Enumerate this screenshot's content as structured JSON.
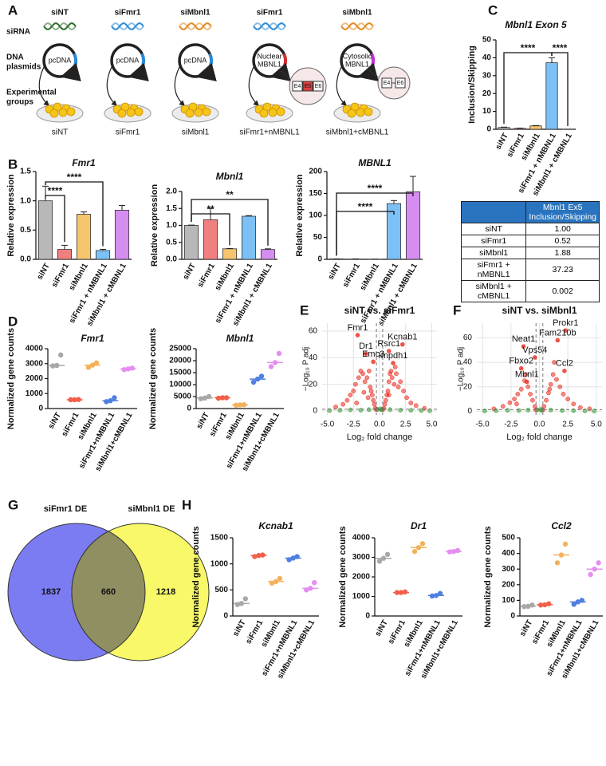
{
  "panel_labels": [
    "A",
    "B",
    "C",
    "D",
    "E",
    "F",
    "G",
    "H"
  ],
  "diagram": {
    "row_labels": [
      [
        "siRNA"
      ],
      [
        "DNA",
        "plasmids"
      ],
      [
        "Experimental",
        "groups"
      ]
    ],
    "sirna": [
      {
        "text": "siNT",
        "color": "#2e6b2e"
      },
      {
        "text": "siFmr1",
        "color": "#2a8ad6"
      },
      {
        "text": "siMbnl1",
        "color": "#e08a20"
      },
      {
        "text": "siFmr1",
        "color": "#2a8ad6"
      },
      {
        "text": "siMbnl1",
        "color": "#e08a20"
      }
    ],
    "plasmids": [
      [
        "pcDNA"
      ],
      [
        "pcDNA"
      ],
      [
        "pcDNA"
      ],
      [
        "Nuclear",
        "MBNL1"
      ],
      [
        "Cytosolic",
        "MBNL1"
      ]
    ],
    "exons": [
      [
        "E4",
        "E5",
        "E6"
      ],
      [
        "E4",
        "E6"
      ]
    ],
    "groups": [
      "siNT",
      "siFmr1",
      "siMbnl1",
      "siFmr1+nMBNL1",
      "siMbnl1+cMBNL1"
    ]
  },
  "table": {
    "header": "Mbnl1 Ex5 Inclusion/Skipping",
    "rows": [
      [
        "siNT",
        "1.00"
      ],
      [
        "siFmr1",
        "0.52"
      ],
      [
        "siMbnl1",
        "1.88"
      ],
      [
        "siFmr1 + nMBNL1",
        "37.23"
      ],
      [
        "siMbnl1 + cMBNL1",
        "0.002"
      ]
    ]
  },
  "chart_data": [
    {
      "type": "bar",
      "title": "Mbnl1 Exon 5",
      "ylabel": "Inclusion/Skipping",
      "categories": [
        "siNT",
        "siFmr1",
        "siMbnl1",
        "siFmr1 + nMBNL1",
        "siMbnl1 + cMBNL1"
      ],
      "values": [
        1.0,
        0.52,
        1.88,
        37.23,
        0.002
      ],
      "errors": [
        0.2,
        0.1,
        0.2,
        2.8,
        0
      ],
      "colors": [
        "#b8b8b8",
        "#f08080",
        "#f7c56e",
        "#7cc0f5",
        "#d58df0"
      ],
      "ylim": [
        0,
        50
      ],
      "yticks": [
        0,
        10,
        20,
        30,
        40,
        50
      ],
      "brackets": [
        {
          "between": [
            0,
            3
          ],
          "label": "****"
        },
        {
          "between": [
            3,
            4
          ],
          "label": "****"
        }
      ]
    },
    {
      "type": "bar",
      "title": "Fmr1",
      "ylabel": "Relative expression",
      "categories": [
        "siNT",
        "siFmr1",
        "siMbnl1",
        "siFmr1 + nMBNL1",
        "siMbnl1 + cMBNL1"
      ],
      "values": [
        1.0,
        0.17,
        0.77,
        0.15,
        0.84
      ],
      "errors": [
        0.25,
        0.07,
        0.04,
        0.02,
        0.08
      ],
      "colors": [
        "#b8b8b8",
        "#f08080",
        "#f7c56e",
        "#7cc0f5",
        "#d58df0"
      ],
      "ylim": [
        0,
        1.5
      ],
      "yticks": [
        {
          "value": 0,
          "label": "0.0"
        },
        0.5,
        {
          "value": 1,
          "label": "1.0"
        },
        1.5
      ],
      "brackets": [
        {
          "between": [
            0,
            1
          ],
          "label": "****"
        },
        {
          "between": [
            0,
            3
          ],
          "label": "****"
        }
      ]
    },
    {
      "type": "bar",
      "title": "Mbnl1",
      "ylabel": "Relative expression",
      "categories": [
        "siNT",
        "siFmr1",
        "siMbnl1",
        "siFmr1 + nMBNL1",
        "siMbnl1 + cMBNL1"
      ],
      "values": [
        1.0,
        1.17,
        0.31,
        1.27,
        0.29
      ],
      "errors": [
        0.01,
        0.33,
        0.01,
        0.02,
        0.02
      ],
      "colors": [
        "#b8b8b8",
        "#f08080",
        "#f7c56e",
        "#7cc0f5",
        "#d58df0"
      ],
      "ylim": [
        0,
        2
      ],
      "yticks": [
        {
          "value": 0,
          "label": "0.0"
        },
        0.5,
        {
          "value": 1,
          "label": "1.0"
        },
        1.5,
        {
          "value": 2,
          "label": "2.0"
        }
      ],
      "brackets": [
        {
          "between": [
            0,
            2
          ],
          "label": "**"
        },
        {
          "between": [
            0,
            4
          ],
          "label": "**"
        }
      ]
    },
    {
      "type": "bar",
      "title": "MBNL1",
      "ylabel": "Relative expression",
      "categories": [
        "siNT",
        "siFmr1",
        "siMbnl1",
        "siFmr1 + nMBNL1",
        "siMbnl1 + cMBNL1"
      ],
      "values": [
        1,
        0.5,
        0.3,
        127,
        154
      ],
      "errors": [
        0.05,
        0.5,
        0.05,
        7,
        35
      ],
      "colors": [
        "#b8b8b8",
        "#f08080",
        "#f7c56e",
        "#7cc0f5",
        "#d58df0"
      ],
      "ylim": [
        0,
        200
      ],
      "yticks": [
        0,
        50,
        100,
        150,
        200
      ],
      "brackets": [
        {
          "between": [
            0,
            3
          ],
          "label": "****"
        },
        {
          "between": [
            0,
            4
          ],
          "label": "****"
        }
      ]
    },
    {
      "type": "strip",
      "title": "Fmr1",
      "ylabel": "Normalized gene counts",
      "categories": [
        "siNT",
        "siFmr1",
        "siMbnl1",
        "siFmr1+nMBNL1",
        "siMbnl1+cMBNL1"
      ],
      "values": [
        [
          2850,
          2880,
          3580
        ],
        [
          590,
          590,
          600
        ],
        [
          2750,
          2900,
          3050
        ],
        [
          460,
          520,
          720
        ],
        [
          2600,
          2650,
          2700
        ]
      ],
      "medians": [
        2880,
        590,
        2900,
        520,
        2650
      ],
      "colors": [
        "#a8a8a8",
        "#f0604a",
        "#f2b25c",
        "#4f7fe0",
        "#e48ef0"
      ],
      "ylim": [
        0,
        4000
      ],
      "yticks": [
        0,
        1000,
        2000,
        3000,
        4000
      ]
    },
    {
      "type": "strip",
      "title": "Mbnl1",
      "ylabel": "Normalized gene counts",
      "categories": [
        "siNT",
        "siFmr1",
        "siMbnl1",
        "siFmr1+nMBNL1",
        "siMbnl1+cMBNL1"
      ],
      "values": [
        [
          4100,
          4400,
          5000
        ],
        [
          4300,
          4500,
          4500
        ],
        [
          1400,
          1500,
          1600
        ],
        [
          11000,
          12300,
          13500
        ],
        [
          17500,
          19200,
          23000
        ]
      ],
      "medians": [
        4400,
        4500,
        1500,
        12300,
        19200
      ],
      "colors": [
        "#a8a8a8",
        "#f0604a",
        "#f2b25c",
        "#4f7fe0",
        "#e48ef0"
      ],
      "ylim": [
        0,
        25000
      ],
      "yticks": [
        0,
        5000,
        10000,
        15000,
        20000,
        25000
      ]
    },
    {
      "type": "scatter",
      "title": "siNT vs. siFmr1",
      "xlabel": "Log₂ fold change",
      "ylabel": "−Log₁₀ P adj",
      "xlim": [
        -5.5,
        5.5
      ],
      "ylim": [
        -3,
        66
      ],
      "grid": true,
      "xticks": [
        {
          "value": -5,
          "label": "-5.0"
        },
        -2.5,
        {
          "value": 0,
          "label": "0.0"
        },
        2.5,
        {
          "value": 5,
          "label": "5.0"
        }
      ],
      "yticks": [
        0,
        20,
        40,
        60
      ],
      "vlines": [
        -0.3,
        0.3
      ],
      "hline": 1.3,
      "series": [
        {
          "color": "#e8281c",
          "x": [
            -4.2,
            -3.5,
            -3.1,
            -2.8,
            -2.5,
            -2.3,
            -2.0,
            -1.8,
            -1.6,
            -1.4,
            -1.2,
            -1.0,
            -0.9,
            -0.8,
            -0.7,
            -0.6,
            -0.5,
            -1.1,
            -1.5,
            -2.2,
            -0.4,
            0.4,
            0.5,
            0.6,
            0.7,
            0.8,
            0.9,
            1.0,
            1.1,
            1.2,
            1.4,
            1.6,
            1.8,
            2.0,
            2.3,
            2.6,
            3.0,
            3.5,
            4.3,
            0.9,
            1.5,
            0.3,
            -0.3
          ],
          "y": [
            3,
            5,
            8,
            12,
            15,
            20,
            25,
            30,
            28,
            22,
            25,
            30,
            18,
            15,
            12,
            8,
            5,
            10,
            14,
            6,
            2,
            2,
            5,
            8,
            12,
            15,
            22,
            28,
            30,
            25,
            20,
            28,
            18,
            22,
            15,
            10,
            6,
            4,
            2,
            12,
            33,
            1,
            1
          ]
        },
        {
          "color": "#2f9a2f",
          "x": [
            -4.8,
            -3.8,
            -2.8,
            -1.8,
            -1.0,
            -0.2,
            0.1,
            0.2,
            1.0,
            2.0,
            3.0,
            4.0,
            4.8
          ],
          "y": [
            0.3,
            0.5,
            0.8,
            0.6,
            1.0,
            1.2,
            1.5,
            0.8,
            1.0,
            0.6,
            0.5,
            0.3,
            0.2
          ]
        }
      ],
      "labels": [
        {
          "text": "Fmr1",
          "x": -2.1,
          "y": 57
        },
        {
          "text": "Dr1",
          "x": -1.3,
          "y": 43
        },
        {
          "text": "Rsrc1",
          "x": 0.9,
          "y": 45
        },
        {
          "text": "Emc3",
          "x": -0.6,
          "y": 37
        },
        {
          "text": "Kcnab1",
          "x": 2.2,
          "y": 50
        },
        {
          "text": "Impdh1",
          "x": 1.3,
          "y": 36
        }
      ]
    },
    {
      "type": "scatter",
      "title": "siNT vs. siMbnl1",
      "xlabel": "Log₂ fold change",
      "ylabel": "−Log₁₀ P adj",
      "xlim": [
        -5.5,
        5.5
      ],
      "ylim": [
        -3,
        72
      ],
      "grid": true,
      "xticks": [
        {
          "value": -5,
          "label": "-5.0"
        },
        -2.5,
        {
          "value": 0,
          "label": "0.0"
        },
        2.5,
        {
          "value": 5,
          "label": "5.0"
        }
      ],
      "yticks": [
        0,
        20,
        40,
        60
      ],
      "vlines": [
        -0.3,
        0.3
      ],
      "hline": 1.3,
      "series": [
        {
          "color": "#e8281c",
          "x": [
            -4.0,
            -3.2,
            -2.6,
            -2.2,
            -1.9,
            -1.6,
            -1.3,
            -1.0,
            -0.8,
            -0.6,
            -0.4,
            -1.2,
            -2.0,
            0.4,
            0.6,
            0.8,
            1.0,
            1.2,
            1.5,
            1.8,
            2.1,
            2.5,
            3.0,
            3.6,
            4.4,
            1.3,
            0.9,
            -0.3,
            0.3
          ],
          "y": [
            2,
            4,
            7,
            10,
            14,
            18,
            25,
            20,
            14,
            9,
            4,
            30,
            6,
            4,
            9,
            15,
            22,
            30,
            26,
            20,
            14,
            10,
            6,
            3,
            2,
            40,
            18,
            1,
            1
          ]
        },
        {
          "color": "#2f9a2f",
          "x": [
            -4.8,
            -3.8,
            -2.8,
            -1.8,
            -1.0,
            -0.2,
            0.1,
            0.2,
            1.0,
            2.0,
            3.0,
            4.0,
            4.8
          ],
          "y": [
            0.3,
            0.5,
            0.8,
            0.6,
            1.0,
            1.2,
            1.5,
            0.8,
            1.0,
            0.6,
            0.5,
            0.3,
            0.2
          ]
        }
      ],
      "labels": [
        {
          "text": "Prokr1",
          "x": 2.3,
          "y": 66
        },
        {
          "text": "Fam210b",
          "x": 1.6,
          "y": 58
        },
        {
          "text": "Neat1",
          "x": -1.4,
          "y": 53
        },
        {
          "text": "Vps54",
          "x": -0.4,
          "y": 44
        },
        {
          "text": "Fbxo2",
          "x": -1.6,
          "y": 35
        },
        {
          "text": "Ccl2",
          "x": 2.2,
          "y": 33
        },
        {
          "text": "Mbnl1",
          "x": -1.1,
          "y": 24
        }
      ]
    },
    {
      "type": "venn",
      "sets": [
        {
          "name": "siFmr1 DE",
          "color": "#7b7bf2",
          "label_color": "#3434d6",
          "count": 1837
        },
        {
          "name": "siMbnl1 DE",
          "color": "#f8f868",
          "label_color": "#9c8c1c",
          "count": 1218
        }
      ],
      "overlap": 660,
      "overlap_color": "#8f8f62"
    },
    {
      "type": "strip",
      "title": "Kcnab1",
      "ylabel": "Normalized gene counts",
      "categories": [
        "siNT",
        "siFmr1",
        "siMbnl1",
        "siFmr1+nMBNL1",
        "siMbnl1+cMBNL1"
      ],
      "values": [
        [
          220,
          240,
          330
        ],
        [
          1140,
          1160,
          1170
        ],
        [
          630,
          660,
          720
        ],
        [
          1080,
          1110,
          1140
        ],
        [
          500,
          530,
          640
        ]
      ],
      "medians": [
        240,
        1160,
        660,
        1110,
        530
      ],
      "colors": [
        "#a8a8a8",
        "#f0604a",
        "#f2b25c",
        "#4f7fe0",
        "#e48ef0"
      ],
      "ylim": [
        0,
        1500
      ],
      "yticks": [
        0,
        500,
        1000,
        1500
      ]
    },
    {
      "type": "strip",
      "title": "Dr1",
      "ylabel": "Normalized gene counts",
      "categories": [
        "siNT",
        "siFmr1",
        "siMbnl1",
        "siFmr1+nMBNL1",
        "siMbnl1+cMBNL1"
      ],
      "values": [
        [
          2800,
          2950,
          3150
        ],
        [
          1200,
          1200,
          1230
        ],
        [
          3300,
          3500,
          3700
        ],
        [
          1020,
          1050,
          1150
        ],
        [
          3280,
          3300,
          3350
        ]
      ],
      "medians": [
        2950,
        1200,
        3500,
        1050,
        3300
      ],
      "colors": [
        "#a8a8a8",
        "#f0604a",
        "#f2b25c",
        "#4f7fe0",
        "#e48ef0"
      ],
      "ylim": [
        0,
        4000
      ],
      "yticks": [
        0,
        1000,
        2000,
        3000,
        4000
      ]
    },
    {
      "type": "strip",
      "title": "Ccl2",
      "ylabel": "Normalized gene counts",
      "categories": [
        "siNT",
        "siFmr1",
        "siMbnl1",
        "siFmr1+nMBNL1",
        "siMbnl1+cMBNL1"
      ],
      "values": [
        [
          60,
          62,
          70
        ],
        [
          70,
          72,
          78
        ],
        [
          340,
          390,
          460
        ],
        [
          75,
          90,
          100
        ],
        [
          265,
          300,
          340
        ]
      ],
      "medians": [
        62,
        72,
        390,
        90,
        300
      ],
      "colors": [
        "#a8a8a8",
        "#f0604a",
        "#f2b25c",
        "#4f7fe0",
        "#e48ef0"
      ],
      "ylim": [
        0,
        500
      ],
      "yticks": [
        0,
        100,
        200,
        300,
        400,
        500
      ]
    }
  ]
}
